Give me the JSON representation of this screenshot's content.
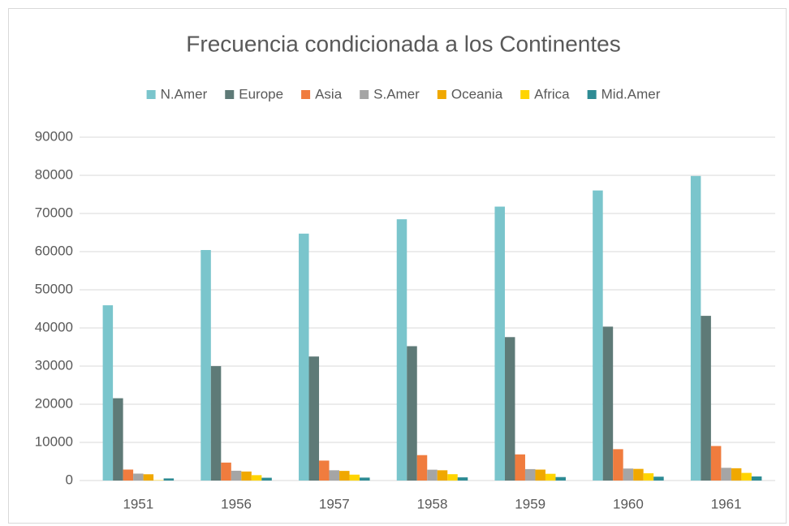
{
  "chart_data": {
    "type": "bar",
    "title": "Frecuencia condicionada a los Continentes",
    "categories": [
      "1951",
      "1956",
      "1957",
      "1958",
      "1959",
      "1960",
      "1961"
    ],
    "series": [
      {
        "name": "N.Amer",
        "color": "#7ac5cc",
        "values": [
          45939,
          60423,
          64721,
          68484,
          71799,
          76036,
          79831
        ]
      },
      {
        "name": "Europe",
        "color": "#5e7a77",
        "values": [
          21574,
          29990,
          32510,
          35218,
          37598,
          40341,
          43173
        ]
      },
      {
        "name": "Asia",
        "color": "#f07c3e",
        "values": [
          2876,
          4708,
          5230,
          6662,
          6856,
          8220,
          9053
        ]
      },
      {
        "name": "S.Amer",
        "color": "#a5a5a5",
        "values": [
          1815,
          2568,
          2695,
          2845,
          3000,
          3145,
          3338
        ]
      },
      {
        "name": "Oceania",
        "color": "#f0a800",
        "values": [
          1646,
          2366,
          2526,
          2691,
          2868,
          3054,
          3224
        ]
      },
      {
        "name": "Africa",
        "color": "#ffd400",
        "values": [
          89,
          1411,
          1546,
          1663,
          1769,
          1905,
          2005
        ]
      },
      {
        "name": "Mid.Amer",
        "color": "#2e8b94",
        "values": [
          555,
          733,
          773,
          836,
          911,
          1008,
          1076
        ]
      }
    ],
    "ylim": [
      0,
      90000
    ],
    "yticks": [
      0,
      10000,
      20000,
      30000,
      40000,
      50000,
      60000,
      70000,
      80000,
      90000
    ],
    "grid": true,
    "legend": "top"
  }
}
